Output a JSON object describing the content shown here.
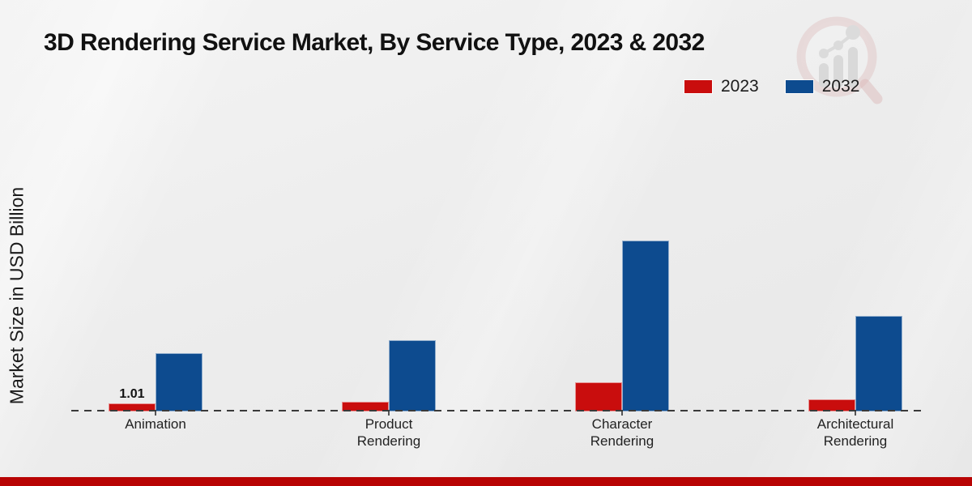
{
  "title": "3D Rendering Service Market, By Service Type, 2023 & 2032",
  "y_axis_label": "Market Size in USD Billion",
  "legend": [
    {
      "label": "2023",
      "color": "#c90d0d"
    },
    {
      "label": "2032",
      "color": "#0d4b8f"
    }
  ],
  "colors": {
    "bar_2023": "#c90d0d",
    "bar_2032": "#0d4b8f",
    "footer_strip": "#b80404",
    "baseline": "#3a3a3a",
    "background": "#ececec"
  },
  "chart_data": {
    "type": "bar",
    "categories": [
      "Animation",
      "Product Rendering",
      "Character Rendering",
      "Architectural Rendering"
    ],
    "series": [
      {
        "name": "2023",
        "color": "#c90d0d",
        "values": [
          1.01,
          1.2,
          3.6,
          1.5
        ]
      },
      {
        "name": "2032",
        "color": "#0d4b8f",
        "values": [
          7.3,
          8.9,
          21.3,
          11.9
        ]
      }
    ],
    "data_labels": [
      {
        "category": "Animation",
        "series": "2023",
        "text": "1.01"
      }
    ],
    "title": "3D Rendering Service Market, By Service Type, 2023 & 2032",
    "xlabel": "",
    "ylabel": "Market Size in USD Billion",
    "ylim": [
      0,
      24
    ],
    "grid": false,
    "legend_position": "top-right",
    "x_axis_style": "dashed-baseline-only"
  }
}
